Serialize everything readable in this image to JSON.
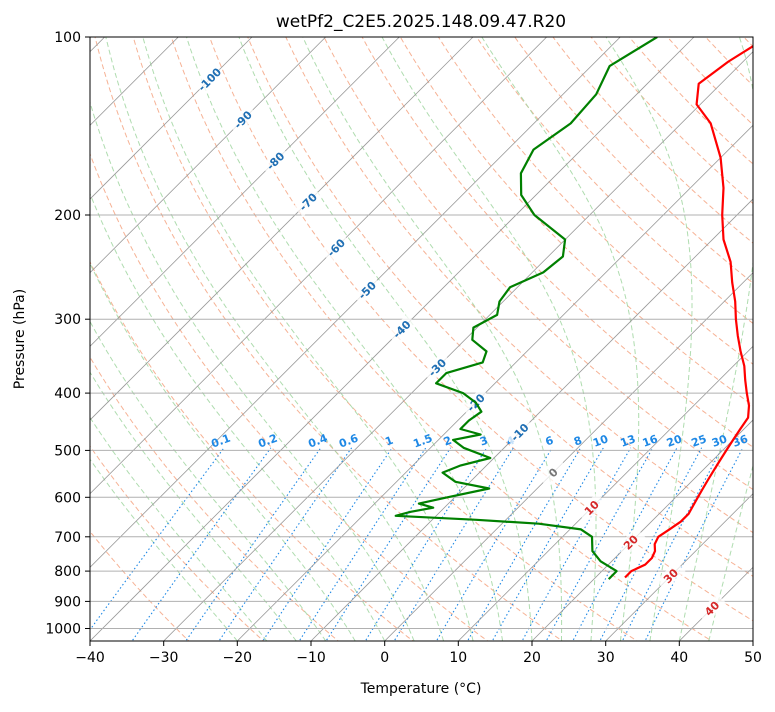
{
  "chart_data": {
    "type": "line",
    "title": "wetPf2_C2E5.2025.148.09.47.R20",
    "xlabel": "Temperature (°C)",
    "ylabel": "Pressure (hPa)",
    "xlim": [
      -40,
      50
    ],
    "ylim": [
      1050,
      100
    ],
    "y_scale": "log",
    "x_ticks": [
      "−40",
      "−30",
      "−20",
      "−10",
      "0",
      "10",
      "20",
      "30",
      "40",
      "50"
    ],
    "y_ticks": [
      {
        "p": 100,
        "label": "100"
      },
      {
        "p": 200,
        "label": "200"
      },
      {
        "p": 300,
        "label": "300"
      },
      {
        "p": 400,
        "label": "400"
      },
      {
        "p": 500,
        "label": "500"
      },
      {
        "p": 600,
        "label": "600"
      },
      {
        "p": 700,
        "label": "700"
      },
      {
        "p": 800,
        "label": "800"
      },
      {
        "p": 900,
        "label": "900"
      },
      {
        "p": 1000,
        "label": "1000"
      }
    ],
    "grid": true,
    "skew_isotherms": true,
    "background_lines": [
      "isotherms",
      "dry adiabats",
      "moist adiabats",
      "mixing ratio lines"
    ],
    "colors": {
      "temperature": "#ff0000",
      "dewpoint": "#008000",
      "isotherm": "#999999",
      "dry_adiabat": "#f4a582",
      "moist_adiabat": "#a6d8a6",
      "mixing_ratio": "#1e88e5",
      "isotherm_label_cold": "#1f6fb4",
      "isotherm_label_zero": "#777777",
      "isotherm_label_warm": "#d62728"
    },
    "isotherm_labels": [
      {
        "t": -100,
        "p": 118,
        "text": "-100"
      },
      {
        "t": -90,
        "p": 138,
        "text": "-90"
      },
      {
        "t": -80,
        "p": 162,
        "text": "-80"
      },
      {
        "t": -70,
        "p": 190,
        "text": "-70"
      },
      {
        "t": -60,
        "p": 227,
        "text": "-60"
      },
      {
        "t": -50,
        "p": 268,
        "text": "-50"
      },
      {
        "t": -40,
        "p": 312,
        "text": "-40"
      },
      {
        "t": -30,
        "p": 362,
        "text": "-30"
      },
      {
        "t": -20,
        "p": 415,
        "text": "-20"
      },
      {
        "t": -10,
        "p": 466,
        "text": "-10"
      },
      {
        "t": 0,
        "p": 545,
        "text": "0"
      },
      {
        "t": 10,
        "p": 625,
        "text": "10"
      },
      {
        "t": 20,
        "p": 715,
        "text": "20"
      },
      {
        "t": 30,
        "p": 815,
        "text": "30"
      },
      {
        "t": 40,
        "p": 925,
        "text": "40"
      }
    ],
    "mixing_ratio_labels": [
      "0.1",
      "0.2",
      "0.4",
      "0.6",
      "1",
      "1.5",
      "2",
      "3",
      "4",
      "6",
      "8",
      "10",
      "13",
      "16",
      "20",
      "25",
      "30",
      "36"
    ],
    "series": [
      {
        "key": "temperature",
        "p": [
          820,
          800,
          780,
          760,
          740,
          720,
          700,
          680,
          660,
          640,
          620,
          600,
          580,
          560,
          540,
          520,
          500,
          480,
          460,
          440,
          420,
          400,
          380,
          360,
          340,
          320,
          300,
          280,
          260,
          240,
          220,
          200,
          180,
          160,
          140,
          130,
          120,
          110,
          100
        ],
        "t": [
          24.0,
          24.0,
          25.0,
          25.0,
          24.5,
          23.5,
          23.0,
          23.5,
          24.0,
          24.0,
          23.5,
          23.0,
          22.5,
          22.0,
          21.5,
          21.0,
          20.5,
          20.0,
          19.5,
          19.0,
          17.5,
          15.5,
          13.5,
          11.5,
          9.0,
          6.5,
          4.0,
          1.5,
          -1.5,
          -4.5,
          -8.5,
          -12.0,
          -15.5,
          -20.0,
          -26.0,
          -30.5,
          -33.0,
          -32.0,
          -30.0
        ]
      },
      {
        "key": "dewpoint",
        "p": [
          825,
          800,
          770,
          740,
          700,
          680,
          665,
          655,
          645,
          635,
          625,
          615,
          600,
          580,
          565,
          545,
          530,
          515,
          495,
          480,
          470,
          460,
          445,
          430,
          415,
          400,
          385,
          370,
          355,
          340,
          325,
          310,
          295,
          280,
          265,
          250,
          235,
          220,
          200,
          185,
          170,
          155,
          140,
          125,
          112,
          100
        ],
        "t": [
          22.0,
          22.0,
          18.5,
          16.0,
          14.0,
          11.5,
          5.0,
          -4.0,
          -15.5,
          -14.0,
          -11.5,
          -14.0,
          -11.0,
          -6.5,
          -12.0,
          -15.0,
          -13.5,
          -10.5,
          -15.5,
          -18.0,
          -15.0,
          -18.5,
          -18.5,
          -18.0,
          -20.0,
          -23.0,
          -28.0,
          -28.0,
          -24.5,
          -25.5,
          -29.0,
          -30.5,
          -29.0,
          -30.5,
          -31.0,
          -28.5,
          -28.0,
          -30.0,
          -37.5,
          -42.0,
          -45.0,
          -46.5,
          -45.0,
          -45.5,
          -47.5,
          -45.0
        ]
      }
    ]
  }
}
